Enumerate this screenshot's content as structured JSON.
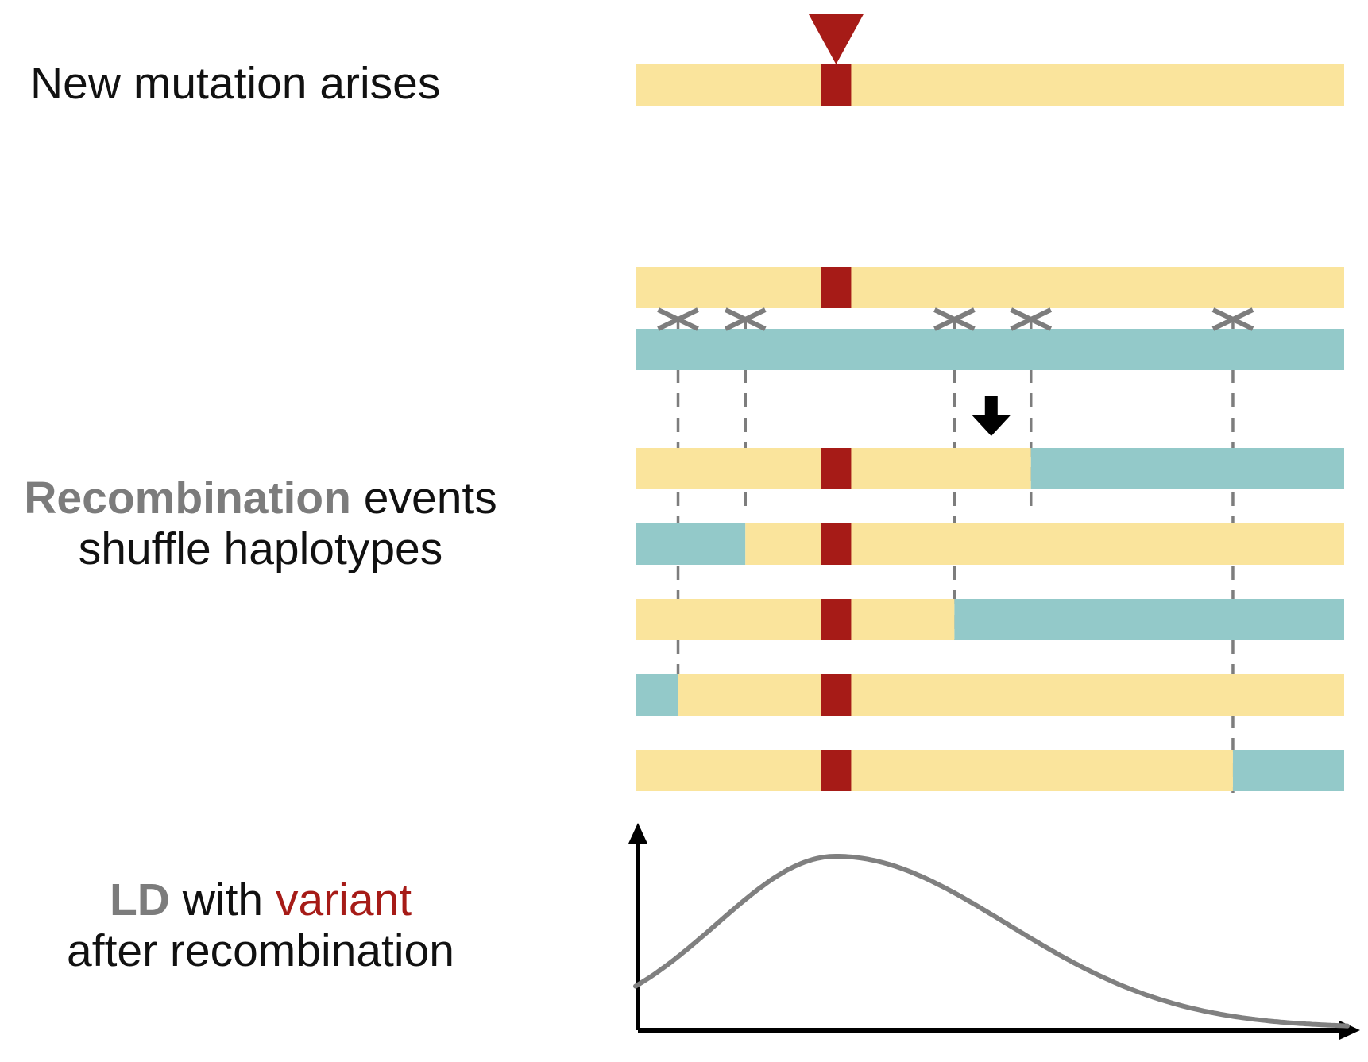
{
  "labels": {
    "mutation": "New mutation arises",
    "recombination_word": "Recombination",
    "recombination_rest": " events",
    "recombination_line2": "shuffle haplotypes",
    "ld_word": "LD",
    "ld_with": " with ",
    "ld_variant": "variant",
    "ld_line2": "after recombination"
  },
  "colors": {
    "haplotype_a": "#fae49c",
    "haplotype_b": "#93c9c9",
    "variant": "#a61b17",
    "crossover": "#7d7d7d",
    "ld_curve": "#808080",
    "axis": "#000000",
    "emphasis_gray": "#7c7c7c"
  },
  "icons": {
    "mutation_marker": "down-triangle-icon",
    "crossover_marker": "x-mark-icon",
    "arrow": "down-arrow-icon"
  },
  "model": {
    "variant_position": 0.283,
    "crossover_positions": [
      0.06,
      0.155,
      0.45,
      0.558,
      0.843
    ],
    "recombinant_haplotypes": [
      {
        "segments": [
          {
            "from": 0,
            "to": 0.558,
            "hap": "a"
          },
          {
            "from": 0.558,
            "to": 1,
            "hap": "b"
          }
        ]
      },
      {
        "segments": [
          {
            "from": 0,
            "to": 0.155,
            "hap": "b"
          },
          {
            "from": 0.155,
            "to": 1,
            "hap": "a"
          }
        ]
      },
      {
        "segments": [
          {
            "from": 0,
            "to": 0.45,
            "hap": "a"
          },
          {
            "from": 0.45,
            "to": 1,
            "hap": "b"
          }
        ]
      },
      {
        "segments": [
          {
            "from": 0,
            "to": 0.06,
            "hap": "b"
          },
          {
            "from": 0.06,
            "to": 1,
            "hap": "a"
          }
        ]
      },
      {
        "segments": [
          {
            "from": 0,
            "to": 0.843,
            "hap": "a"
          },
          {
            "from": 0.843,
            "to": 1,
            "hap": "b"
          }
        ]
      }
    ]
  }
}
